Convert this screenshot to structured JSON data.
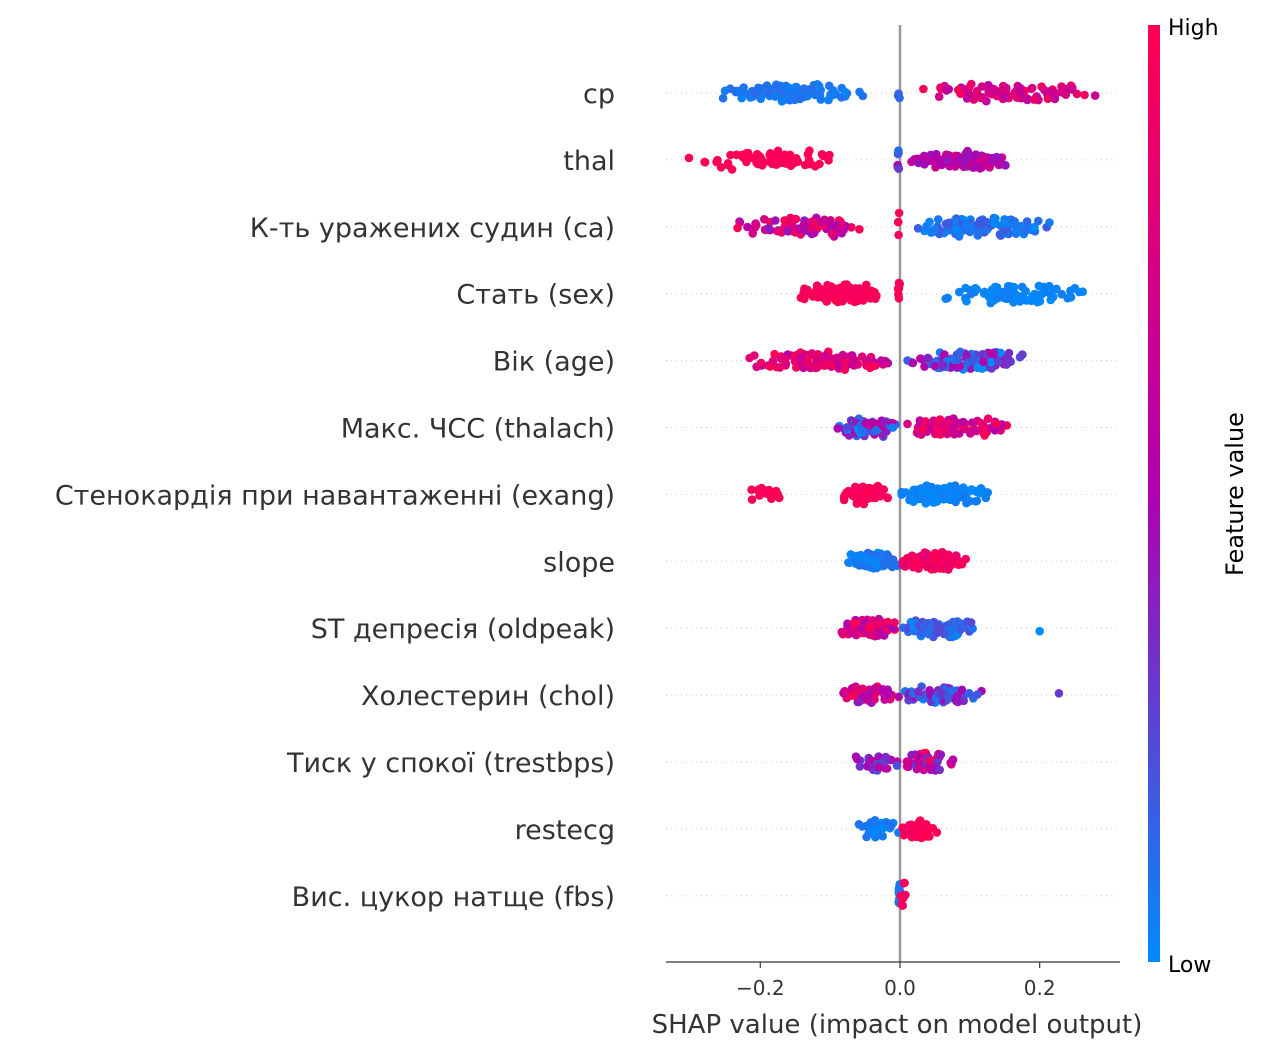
{
  "chart_data": {
    "type": "scatter",
    "subtype": "shap-beeswarm",
    "xlabel": "SHAP value (impact on model output)",
    "xlim": [
      -0.335,
      0.315
    ],
    "xticks": [
      -0.2,
      0.0,
      0.2
    ],
    "xtick_labels": [
      "−0.2",
      "0.0",
      "0.2"
    ],
    "colorbar": {
      "title": "Feature value",
      "high_label": "High",
      "low_label": "Low",
      "low_color": "#008bfb",
      "mid_color": "#b000b0",
      "high_color": "#ff0052"
    },
    "features": [
      {
        "name": "cp",
        "clusters": [
          {
            "lo": -0.275,
            "hi": -0.05,
            "n": 100,
            "c0": 0.02,
            "c1": 0.12
          },
          {
            "lo": -0.005,
            "hi": 0.0,
            "n": 3,
            "c0": 0.1,
            "c1": 0.2
          },
          {
            "lo": 0.03,
            "hi": 0.29,
            "n": 90,
            "c0": 0.55,
            "c1": 0.98
          }
        ]
      },
      {
        "name": "thal",
        "clusters": [
          {
            "lo": -0.305,
            "hi": -0.065,
            "n": 70,
            "c0": 0.95,
            "c1": 1.0
          },
          {
            "lo": -0.005,
            "hi": 0.0,
            "n": 6,
            "c0": 0.1,
            "c1": 0.5
          },
          {
            "lo": 0.01,
            "hi": 0.165,
            "n": 110,
            "c0": 0.4,
            "c1": 0.7
          }
        ]
      },
      {
        "name": "К-ть уражених судин (ca)",
        "clusters": [
          {
            "lo": -0.245,
            "hi": -0.03,
            "n": 75,
            "c0": 0.4,
            "c1": 1.0
          },
          {
            "lo": -0.005,
            "hi": 0.0,
            "n": 3,
            "c0": 0.9,
            "c1": 1.0
          },
          {
            "lo": 0.01,
            "hi": 0.22,
            "n": 110,
            "c0": 0.0,
            "c1": 0.2
          }
        ]
      },
      {
        "name": "Стать (sex)",
        "clusters": [
          {
            "lo": -0.15,
            "hi": -0.02,
            "n": 100,
            "c0": 0.93,
            "c1": 1.0
          },
          {
            "lo": -0.003,
            "hi": 0.0,
            "n": 8,
            "c0": 0.9,
            "c1": 1.0
          },
          {
            "lo": 0.05,
            "hi": 0.28,
            "n": 75,
            "c0": 0.0,
            "c1": 0.05
          }
        ]
      },
      {
        "name": "Вік (age)",
        "clusters": [
          {
            "lo": -0.23,
            "hi": -0.01,
            "n": 110,
            "c0": 0.55,
            "c1": 1.0
          },
          {
            "lo": 0.0,
            "hi": 0.19,
            "n": 100,
            "c0": 0.0,
            "c1": 0.55
          }
        ]
      },
      {
        "name": "Макс. ЧСС (thalach)",
        "clusters": [
          {
            "lo": -0.095,
            "hi": 0.0,
            "n": 75,
            "c0": 0.0,
            "c1": 0.6
          },
          {
            "lo": 0.0,
            "hi": 0.165,
            "n": 85,
            "c0": 0.5,
            "c1": 1.0
          }
        ]
      },
      {
        "name": "Стенокардія при навантаженні (exang)",
        "clusters": [
          {
            "lo": -0.22,
            "hi": -0.165,
            "n": 15,
            "c0": 0.93,
            "c1": 1.0
          },
          {
            "lo": -0.085,
            "hi": -0.015,
            "n": 60,
            "c0": 0.93,
            "c1": 1.0
          },
          {
            "lo": -0.003,
            "hi": 0.13,
            "n": 120,
            "c0": 0.0,
            "c1": 0.06
          }
        ]
      },
      {
        "name": "slope",
        "clusters": [
          {
            "lo": -0.08,
            "hi": 0.0,
            "n": 85,
            "c0": 0.0,
            "c1": 0.12
          },
          {
            "lo": 0.0,
            "hi": 0.1,
            "n": 85,
            "c0": 0.82,
            "c1": 1.0
          }
        ]
      },
      {
        "name": "ST депресія (oldpeak)",
        "clusters": [
          {
            "lo": -0.09,
            "hi": 0.0,
            "n": 70,
            "c0": 0.45,
            "c1": 1.0
          },
          {
            "lo": 0.0,
            "hi": 0.11,
            "n": 80,
            "c0": 0.0,
            "c1": 0.25
          },
          {
            "lo": 0.2,
            "hi": 0.2,
            "n": 1,
            "c0": 0.0,
            "c1": 0.0
          }
        ]
      },
      {
        "name": "Холестерин (chol)",
        "clusters": [
          {
            "lo": -0.09,
            "hi": 0.0,
            "n": 65,
            "c0": 0.35,
            "c1": 1.0
          },
          {
            "lo": 0.0,
            "hi": 0.12,
            "n": 75,
            "c0": 0.05,
            "c1": 0.5
          },
          {
            "lo": 0.225,
            "hi": 0.23,
            "n": 1,
            "c0": 0.3,
            "c1": 0.3
          }
        ]
      },
      {
        "name": "Тиск у спокої (trestbps)",
        "clusters": [
          {
            "lo": -0.065,
            "hi": 0.0,
            "n": 40,
            "c0": 0.2,
            "c1": 0.6
          },
          {
            "lo": 0.0,
            "hi": 0.085,
            "n": 45,
            "c0": 0.3,
            "c1": 1.0
          }
        ]
      },
      {
        "name": "restecg",
        "clusters": [
          {
            "lo": -0.065,
            "hi": 0.0,
            "n": 40,
            "c0": 0.0,
            "c1": 0.1
          },
          {
            "lo": 0.0,
            "hi": 0.055,
            "n": 45,
            "c0": 0.93,
            "c1": 1.0
          }
        ]
      },
      {
        "name": "Вис. цукор натще (fbs)",
        "clusters": [
          {
            "lo": -0.002,
            "hi": 0.0,
            "n": 18,
            "c0": 0.0,
            "c1": 0.1
          },
          {
            "lo": 0.0,
            "hi": 0.01,
            "n": 8,
            "c0": 0.9,
            "c1": 1.0
          }
        ]
      }
    ]
  }
}
